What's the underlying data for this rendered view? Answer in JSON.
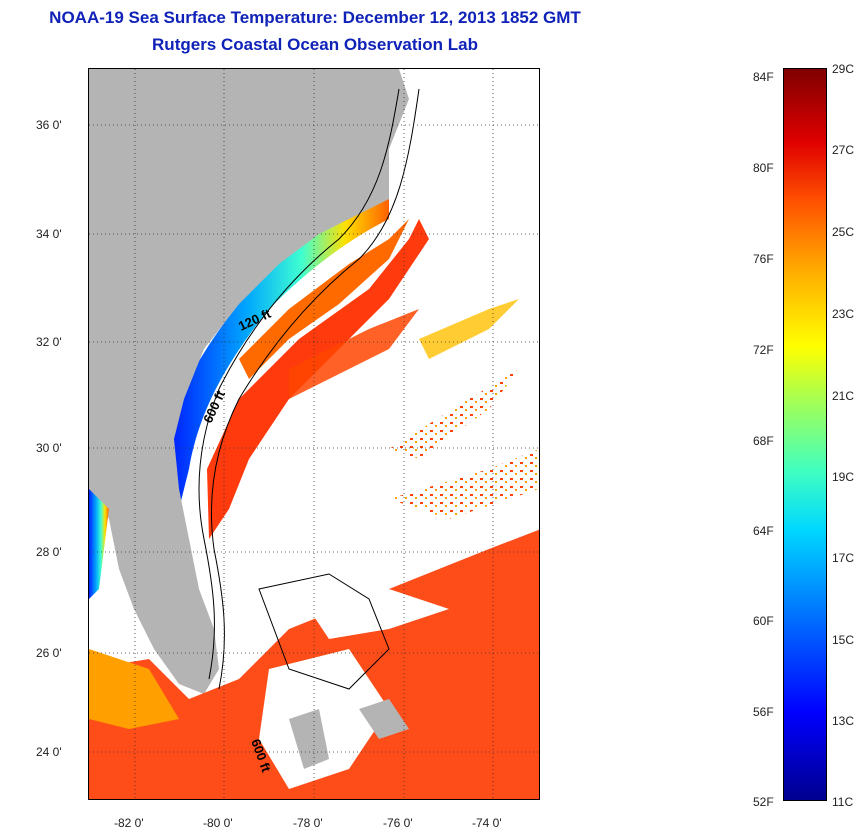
{
  "title": {
    "line1": "NOAA-19 Sea Surface Temperature:  December 12, 2013 1852 GMT",
    "line2": "Rutgers Coastal Ocean Observation Lab"
  },
  "map": {
    "lat_ticks": [
      "36 0'",
      "34 0'",
      "32 0'",
      "30 0'",
      "28 0'",
      "26 0'",
      "24 0'"
    ],
    "lon_ticks": [
      "-82 0'",
      "-80 0'",
      "-78 0'",
      "-76 0'",
      "-74 0'"
    ],
    "depth_labels": [
      "120 ft",
      "600 ft",
      "600 ft"
    ],
    "colors": {
      "land": "#b4b4b4",
      "no_data": "#ffffff",
      "contour": "#000000"
    }
  },
  "colorbar": {
    "fahrenheit": [
      "84F",
      "80F",
      "76F",
      "72F",
      "68F",
      "64F",
      "60F",
      "56F",
      "52F"
    ],
    "celsius": [
      "29C",
      "27C",
      "25C",
      "23C",
      "21C",
      "19C",
      "17C",
      "15C",
      "13C",
      "11C"
    ]
  }
}
